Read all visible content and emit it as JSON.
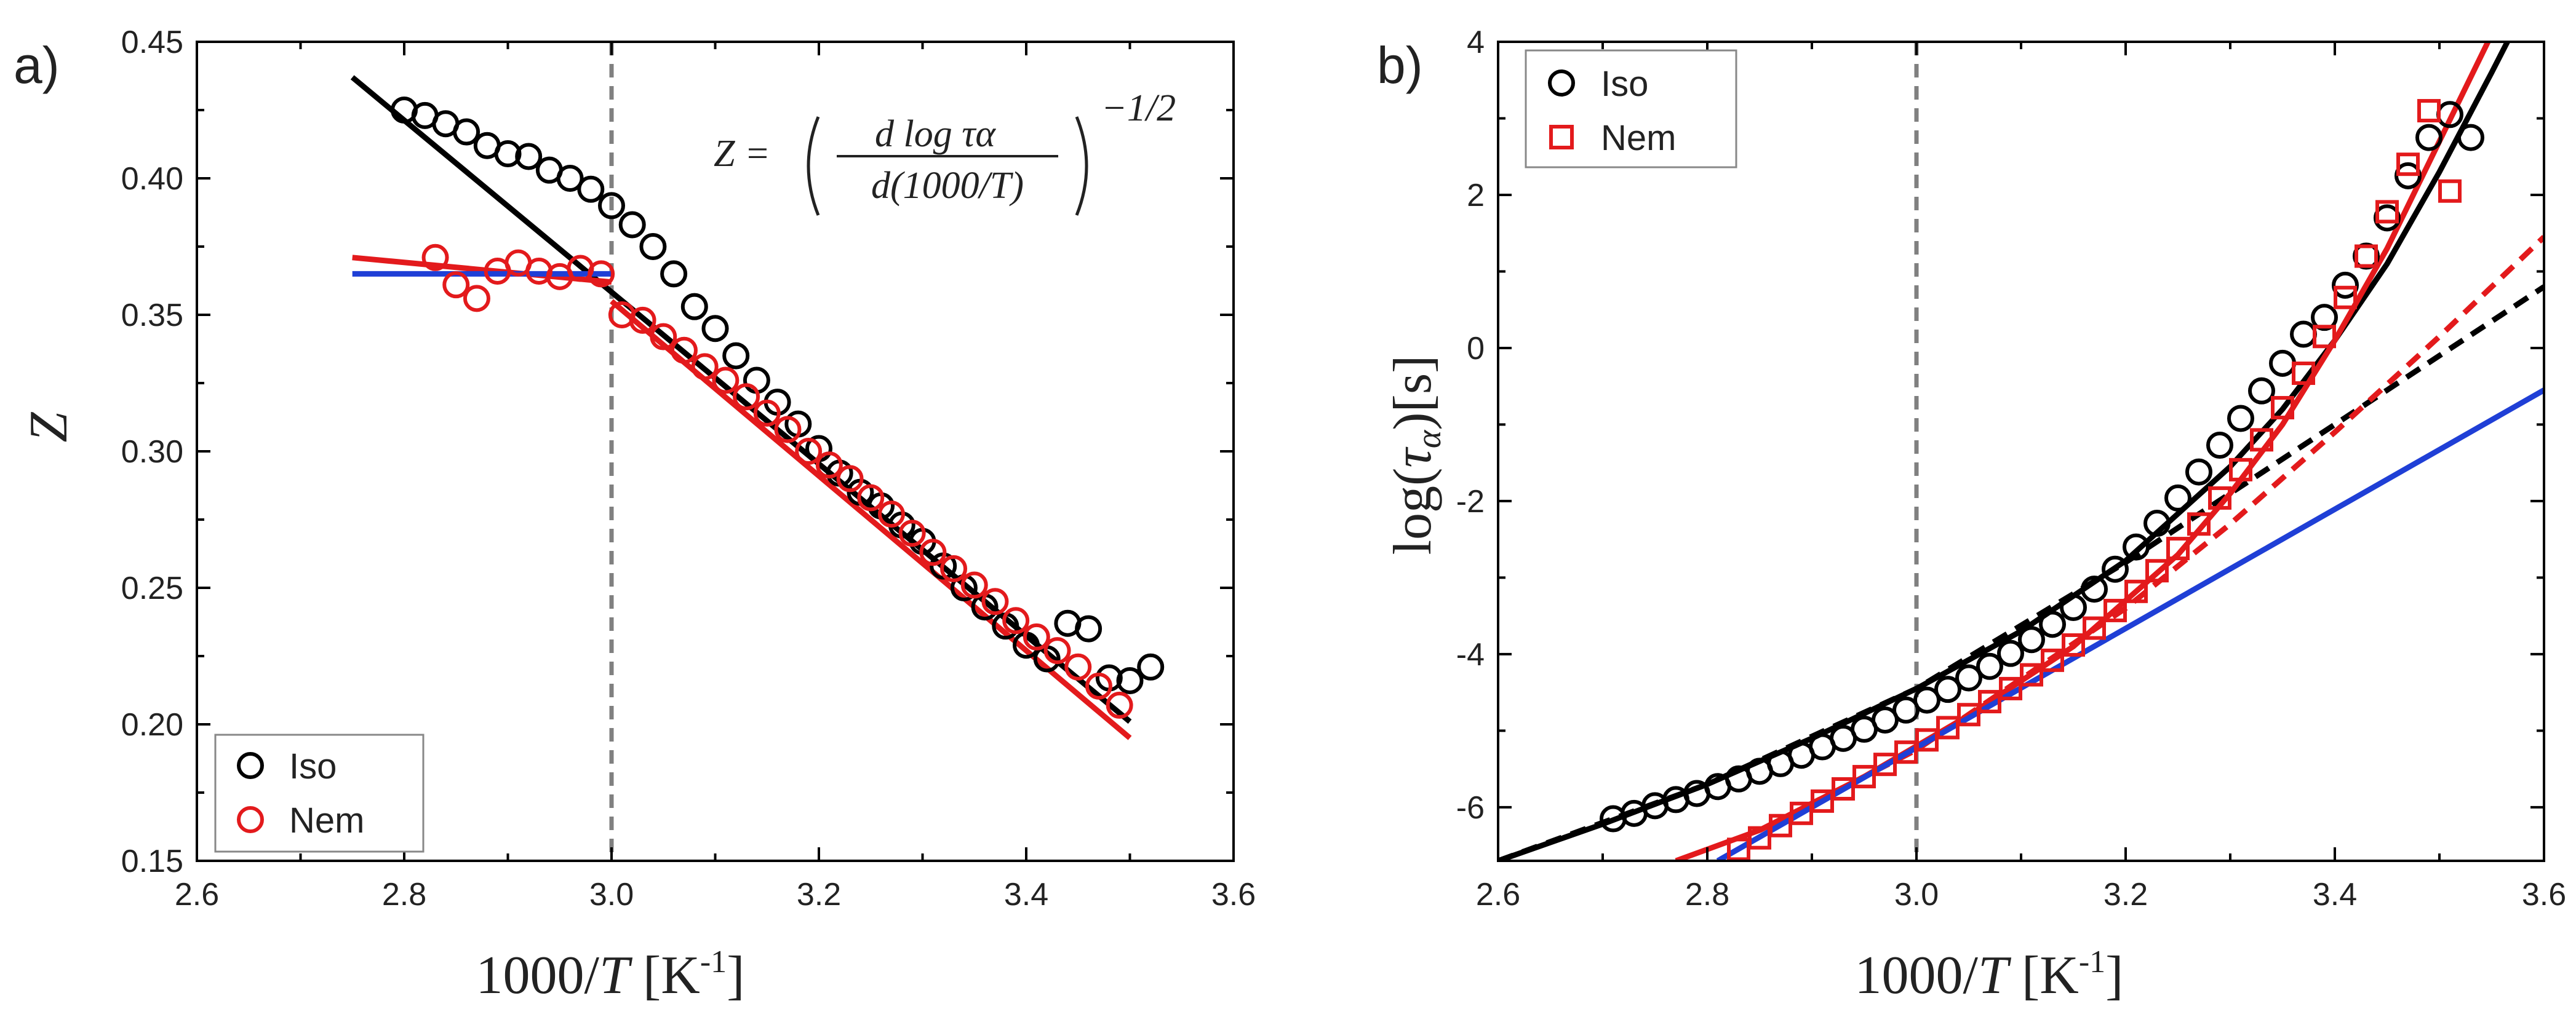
{
  "colors": {
    "iso": "#000000",
    "nem": "#e31a1c",
    "fit_blue": "#1f3fd6",
    "ref_line": "#808080"
  },
  "chart_data": [
    {
      "type": "scatter",
      "panel_label": "a)",
      "xlabel": "1000/T [K-1]",
      "xlabel_parts": {
        "pre": "1000/",
        "var": "T",
        "unit_open": " [K",
        "sup": "-1",
        "unit_close": "]"
      },
      "ylabel": "Z",
      "xlim": [
        2.6,
        3.6
      ],
      "ylim": [
        0.15,
        0.45
      ],
      "xticks": [
        "2.6",
        "2.8",
        "3.0",
        "3.2",
        "3.4",
        "3.6"
      ],
      "yticks": [
        "0.15",
        "0.20",
        "0.25",
        "0.30",
        "0.35",
        "0.40",
        "0.45"
      ],
      "vline_x": 3.0,
      "equation": {
        "lhs": "Z =",
        "numerator": "d log τα",
        "denominator": "d(1000/T)",
        "exponent": "−1/2"
      },
      "legend": {
        "position": "bottom-left",
        "entries": [
          {
            "label": "Iso",
            "marker": "circle"
          },
          {
            "label": "Nem",
            "marker": "circle"
          }
        ]
      },
      "series": [
        {
          "name": "Iso",
          "marker": "circle",
          "x": [
            2.8,
            2.82,
            2.84,
            2.86,
            2.88,
            2.9,
            2.92,
            2.94,
            2.96,
            2.98,
            3.0,
            3.02,
            3.04,
            3.06,
            3.08,
            3.1,
            3.12,
            3.14,
            3.16,
            3.18,
            3.2,
            3.22,
            3.24,
            3.26,
            3.28,
            3.3,
            3.32,
            3.34,
            3.36,
            3.38,
            3.4,
            3.42,
            3.44,
            3.46,
            3.48,
            3.5,
            3.52
          ],
          "y": [
            0.425,
            0.423,
            0.42,
            0.417,
            0.412,
            0.409,
            0.408,
            0.403,
            0.4,
            0.396,
            0.39,
            0.383,
            0.375,
            0.365,
            0.353,
            0.345,
            0.335,
            0.326,
            0.318,
            0.31,
            0.301,
            0.292,
            0.285,
            0.28,
            0.273,
            0.267,
            0.258,
            0.25,
            0.243,
            0.236,
            0.229,
            0.224,
            0.237,
            0.235,
            0.217,
            0.216,
            0.221
          ]
        },
        {
          "name": "Nem",
          "marker": "circle",
          "x": [
            2.83,
            2.85,
            2.87,
            2.89,
            2.91,
            2.93,
            2.95,
            2.97,
            2.99,
            3.01,
            3.03,
            3.05,
            3.07,
            3.09,
            3.11,
            3.13,
            3.15,
            3.17,
            3.19,
            3.21,
            3.23,
            3.25,
            3.27,
            3.29,
            3.31,
            3.33,
            3.35,
            3.37,
            3.39,
            3.41,
            3.43,
            3.45,
            3.47,
            3.49
          ],
          "y": [
            0.371,
            0.361,
            0.356,
            0.366,
            0.369,
            0.366,
            0.364,
            0.367,
            0.365,
            0.35,
            0.348,
            0.342,
            0.337,
            0.331,
            0.326,
            0.32,
            0.314,
            0.308,
            0.3,
            0.295,
            0.29,
            0.283,
            0.277,
            0.27,
            0.263,
            0.257,
            0.251,
            0.245,
            0.238,
            0.232,
            0.227,
            0.221,
            0.214,
            0.207
          ]
        }
      ],
      "fit_lines": [
        {
          "name": "Iso fit",
          "color_key": "iso",
          "x": [
            2.75,
            3.5
          ],
          "y": [
            0.437,
            0.201
          ]
        },
        {
          "name": "Nem fit (isotropic-like)",
          "color_key": "nem",
          "x": [
            2.75,
            3.0
          ],
          "y": [
            0.371,
            0.362
          ]
        },
        {
          "name": "Nem fit (nematic)",
          "color_key": "nem",
          "x": [
            3.0,
            3.5
          ],
          "y": [
            0.355,
            0.195
          ]
        },
        {
          "name": "Constant Z",
          "color_key": "fit_blue",
          "x": [
            2.75,
            3.0
          ],
          "y": [
            0.365,
            0.365
          ]
        }
      ]
    },
    {
      "type": "scatter",
      "panel_label": "b)",
      "xlabel": "1000/T [K-1]",
      "xlabel_parts": {
        "pre": "1000/",
        "var": "T",
        "unit_open": " [K",
        "sup": "-1",
        "unit_close": "]"
      },
      "ylabel": "log(τα)[s]",
      "ylabel_parts": {
        "pre": "log(",
        "var": "τ",
        "sub": "α",
        "post": ")[s]"
      },
      "xlim": [
        2.6,
        3.6
      ],
      "ylim": [
        -6.7,
        4.0
      ],
      "xticks": [
        "2.6",
        "2.8",
        "3.0",
        "3.2",
        "3.4",
        "3.6"
      ],
      "yticks": [
        "-6",
        "-4",
        "-2",
        "0",
        "2",
        "4"
      ],
      "vline_x": 3.0,
      "legend": {
        "position": "top-left",
        "entries": [
          {
            "label": "Iso",
            "marker": "circle"
          },
          {
            "label": "Nem",
            "marker": "square"
          }
        ]
      },
      "series": [
        {
          "name": "Iso",
          "marker": "circle",
          "x": [
            2.71,
            2.73,
            2.75,
            2.77,
            2.79,
            2.81,
            2.83,
            2.85,
            2.87,
            2.89,
            2.91,
            2.93,
            2.95,
            2.97,
            2.99,
            3.01,
            3.03,
            3.05,
            3.07,
            3.09,
            3.11,
            3.13,
            3.15,
            3.17,
            3.19,
            3.21,
            3.23,
            3.25,
            3.27,
            3.29,
            3.31,
            3.33,
            3.35,
            3.37,
            3.39,
            3.41,
            3.43,
            3.45,
            3.47,
            3.49,
            3.51,
            3.53
          ],
          "y": [
            -6.15,
            -6.08,
            -5.98,
            -5.9,
            -5.82,
            -5.73,
            -5.63,
            -5.53,
            -5.43,
            -5.32,
            -5.21,
            -5.1,
            -4.98,
            -4.86,
            -4.73,
            -4.6,
            -4.46,
            -4.31,
            -4.16,
            -3.99,
            -3.81,
            -3.61,
            -3.39,
            -3.15,
            -2.89,
            -2.6,
            -2.29,
            -1.96,
            -1.62,
            -1.27,
            -0.92,
            -0.56,
            -0.2,
            0.18,
            0.4,
            0.82,
            1.2,
            1.7,
            2.25,
            2.75,
            3.05,
            2.75
          ]
        },
        {
          "name": "Nem",
          "marker": "square",
          "x": [
            2.83,
            2.85,
            2.87,
            2.89,
            2.91,
            2.93,
            2.95,
            2.97,
            2.99,
            3.01,
            3.03,
            3.05,
            3.07,
            3.09,
            3.11,
            3.13,
            3.15,
            3.17,
            3.19,
            3.21,
            3.23,
            3.25,
            3.27,
            3.29,
            3.31,
            3.33,
            3.35,
            3.37,
            3.39,
            3.41,
            3.43,
            3.45,
            3.47,
            3.49,
            3.51
          ],
          "y": [
            -6.55,
            -6.4,
            -6.24,
            -6.08,
            -5.92,
            -5.76,
            -5.6,
            -5.44,
            -5.28,
            -5.12,
            -4.96,
            -4.79,
            -4.62,
            -4.45,
            -4.27,
            -4.08,
            -3.88,
            -3.66,
            -3.43,
            -3.18,
            -2.91,
            -2.62,
            -2.3,
            -1.96,
            -1.59,
            -1.2,
            -0.78,
            -0.33,
            0.15,
            0.66,
            1.2,
            1.78,
            2.4,
            3.1,
            2.05
          ]
        }
      ],
      "fit_lines": [
        {
          "name": "Iso VFT fit",
          "color_key": "iso",
          "style": "solid",
          "x": [
            2.6,
            2.7,
            2.8,
            2.9,
            3.0,
            3.1,
            3.2,
            3.3,
            3.35,
            3.4,
            3.45,
            3.5,
            3.55,
            3.58
          ],
          "y": [
            -6.7,
            -6.22,
            -5.7,
            -5.1,
            -4.45,
            -3.7,
            -2.78,
            -1.55,
            -0.8,
            0.1,
            1.1,
            2.3,
            3.6,
            4.4
          ]
        },
        {
          "name": "Iso low-T extrapolation",
          "color_key": "iso",
          "style": "dashed",
          "x": [
            2.6,
            2.8,
            3.0,
            3.2,
            3.3,
            3.4,
            3.5,
            3.6
          ],
          "y": [
            -6.7,
            -5.7,
            -4.45,
            -2.8,
            -1.9,
            -1.0,
            -0.1,
            0.8
          ]
        },
        {
          "name": "Nem VFT fit",
          "color_key": "nem",
          "style": "solid",
          "x": [
            2.77,
            2.85,
            2.95,
            3.05,
            3.15,
            3.25,
            3.3,
            3.35,
            3.4,
            3.45,
            3.5,
            3.55,
            3.57
          ],
          "y": [
            -6.7,
            -6.3,
            -5.6,
            -4.8,
            -3.9,
            -2.7,
            -1.9,
            -1.0,
            0.1,
            1.3,
            2.7,
            4.1,
            4.6
          ]
        },
        {
          "name": "Nem low-T extrapolation",
          "color_key": "nem",
          "style": "dashed",
          "x": [
            2.85,
            3.0,
            3.2,
            3.3,
            3.4,
            3.5,
            3.6
          ],
          "y": [
            -6.3,
            -5.25,
            -3.4,
            -2.3,
            -1.1,
            0.15,
            1.45
          ]
        },
        {
          "name": "Arrhenius",
          "color_key": "fit_blue",
          "style": "solid",
          "x": [
            2.81,
            3.6
          ],
          "y": [
            -6.7,
            -0.55
          ]
        }
      ]
    }
  ]
}
